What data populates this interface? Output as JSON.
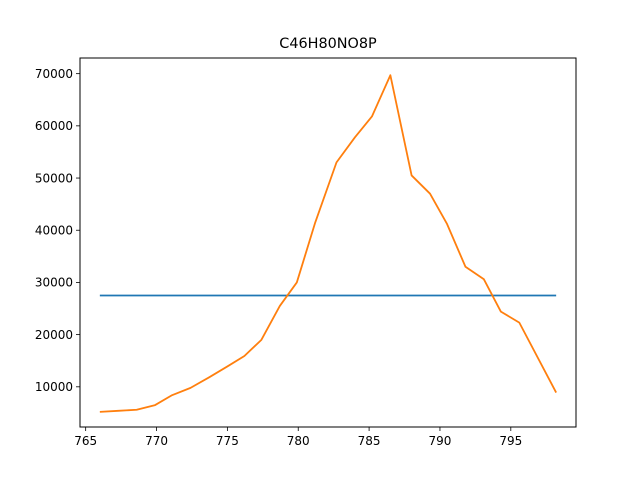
{
  "chart_data": {
    "type": "line",
    "title": "C46H80NO8P",
    "xlabel": "",
    "ylabel": "",
    "xlim": [
      764.6,
      799.6
    ],
    "ylim": [
      2300,
      73000
    ],
    "x_ticks": [
      765,
      770,
      775,
      780,
      785,
      790,
      795
    ],
    "y_ticks": [
      10000,
      20000,
      30000,
      40000,
      50000,
      60000,
      70000
    ],
    "grid": false,
    "series": [
      {
        "color": "#1f77b4",
        "x": [
          766.0,
          798.2
        ],
        "y": [
          27500,
          27500
        ]
      },
      {
        "color": "#ff7f0e",
        "x": [
          766.0,
          767.3,
          768.6,
          769.9,
          771.1,
          772.4,
          773.7,
          775.0,
          776.2,
          777.4,
          778.7,
          779.9,
          781.2,
          782.7,
          784.0,
          785.2,
          786.5,
          788.0,
          789.3,
          790.5,
          791.8,
          793.1,
          794.3,
          795.6,
          798.2
        ],
        "y": [
          5200,
          5400,
          5600,
          6500,
          8400,
          9800,
          11800,
          13900,
          15900,
          19000,
          25500,
          30000,
          41500,
          53000,
          57800,
          61800,
          69700,
          50500,
          47000,
          41200,
          33000,
          30600,
          24400,
          22300,
          8900
        ]
      }
    ]
  }
}
